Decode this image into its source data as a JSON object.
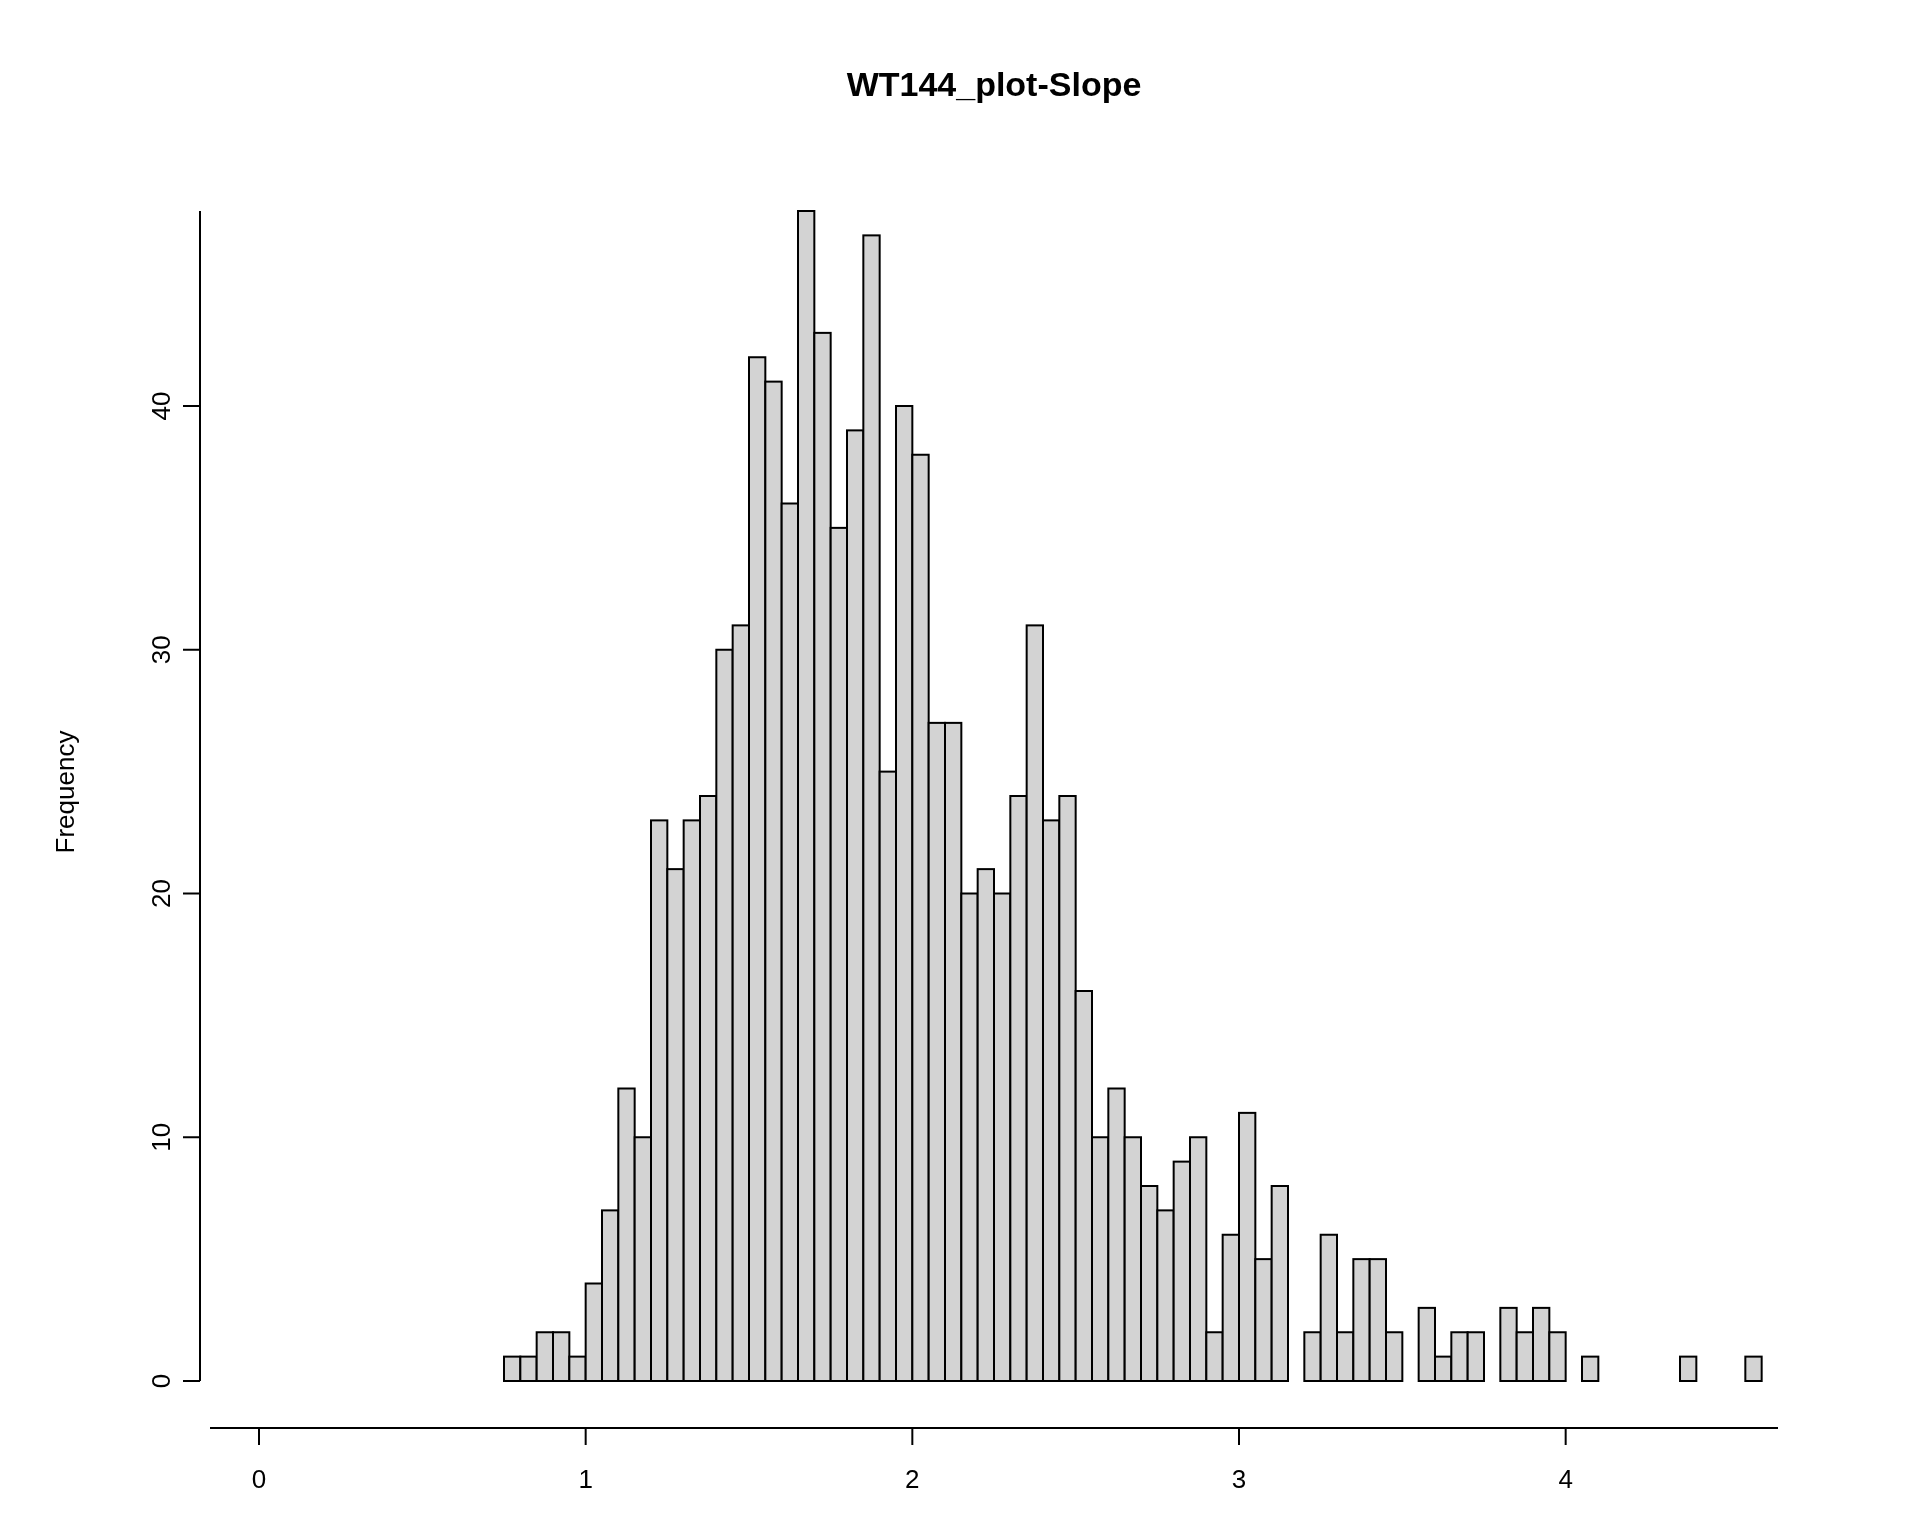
{
  "chart_data": {
    "type": "histogram",
    "title": "WT144_plot-Slope",
    "ylabel": "Frequency",
    "color": "#d3d3d3",
    "bins": [
      0.75,
      0.8,
      0.85,
      0.9,
      0.95,
      1.0,
      1.05,
      1.1,
      1.15,
      1.2,
      1.25,
      1.3,
      1.35,
      1.4,
      1.45,
      1.5,
      1.55,
      1.6,
      1.65,
      1.7,
      1.75,
      1.8,
      1.85,
      1.9,
      1.95,
      2.0,
      2.05,
      2.1,
      2.15,
      2.2,
      2.25,
      2.3,
      2.35,
      2.4,
      2.45,
      2.5,
      2.55,
      2.6,
      2.65,
      2.7,
      2.75,
      2.8,
      2.85,
      2.9,
      2.95,
      3.0,
      3.05,
      3.1,
      3.15,
      3.2,
      3.25,
      3.3,
      3.35,
      3.4,
      3.45,
      3.5,
      3.55,
      3.6,
      3.65,
      3.7,
      3.75,
      3.8,
      3.85,
      3.9,
      3.95,
      4.0,
      4.05,
      4.1,
      4.15,
      4.2,
      4.25,
      4.3,
      4.35,
      4.4,
      4.45,
      4.5,
      4.55,
      4.6
    ],
    "values": [
      1,
      1,
      2,
      2,
      1,
      4,
      7,
      12,
      10,
      23,
      21,
      23,
      24,
      30,
      31,
      42,
      41,
      36,
      48,
      43,
      35,
      39,
      47,
      25,
      40,
      38,
      27,
      27,
      20,
      21,
      20,
      24,
      31,
      23,
      24,
      16,
      10,
      12,
      10,
      8,
      7,
      9,
      10,
      2,
      6,
      11,
      5,
      8,
      0,
      2,
      6,
      2,
      5,
      5,
      2,
      0,
      3,
      1,
      2,
      2,
      0,
      3,
      2,
      3,
      2,
      0,
      1,
      0,
      0,
      0,
      0,
      0,
      1,
      0,
      0,
      0,
      1
    ],
    "xlim": [
      -0.15,
      4.65
    ],
    "ylim": [
      0,
      48
    ],
    "xticks": [
      0,
      1,
      2,
      3,
      4
    ],
    "yticks": [
      0,
      10,
      20,
      30,
      40
    ],
    "grid": false
  }
}
